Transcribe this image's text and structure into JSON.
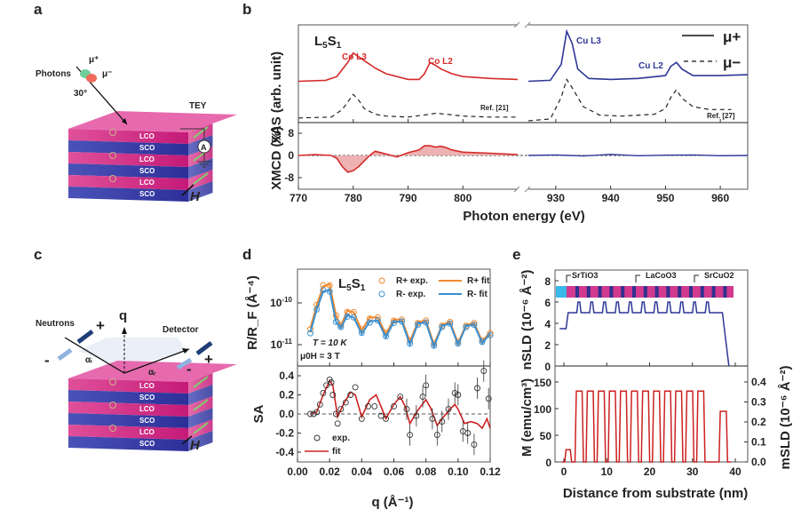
{
  "panels": {
    "a": {
      "letter": "a",
      "photons": "Photons",
      "mu_plus": "μ⁺",
      "mu_minus": "μ⁻",
      "angle": "30°",
      "tey": "TEY",
      "ammeter": "A",
      "field": "H",
      "layers": [
        "LCO",
        "SCO",
        "LCO",
        "SCO",
        "LCO",
        "SCO"
      ]
    },
    "b": {
      "letter": "b"
    },
    "c": {
      "letter": "c",
      "neutrons": "Neutrons",
      "detector": "Detector",
      "q": "q",
      "alpha_i": "αᵢ",
      "alpha_r": "αᵣ",
      "plus": "+",
      "minus": "-",
      "field": "H",
      "layers": [
        "LCO",
        "SCO",
        "LCO",
        "SCO",
        "LCO",
        "SCO"
      ]
    },
    "d": {
      "letter": "d"
    },
    "e": {
      "letter": "e"
    }
  },
  "chart_data": [
    {
      "id": "b-xas",
      "type": "line",
      "title": "",
      "sample": "L5S1",
      "xlabel": "Photon energy (eV)",
      "ylabel": "XAS (arb. unit)",
      "x_segments": [
        [
          770,
          810
        ],
        [
          925,
          965
        ]
      ],
      "xticks": [
        770,
        780,
        790,
        800,
        930,
        940,
        950,
        960
      ],
      "annotations": [
        "Co L3",
        "Co L2",
        "Cu L3",
        "Cu L2",
        "Ref. [21]",
        "Ref. [27]"
      ],
      "legend": [
        {
          "name": "μ+",
          "style": "solid"
        },
        {
          "name": "μ−",
          "style": "dashed"
        }
      ],
      "legend_position": "top-right",
      "series": [
        {
          "name": "Co μ+ (red)",
          "color": "#d42a2a",
          "x": [
            770,
            775,
            777,
            779,
            780,
            781,
            782,
            784,
            786,
            790,
            792,
            793,
            794,
            795,
            796,
            798,
            800,
            805,
            810
          ],
          "y": [
            0.42,
            0.43,
            0.47,
            0.62,
            0.72,
            0.68,
            0.64,
            0.56,
            0.5,
            0.44,
            0.44,
            0.5,
            0.62,
            0.59,
            0.55,
            0.5,
            0.47,
            0.45,
            0.44
          ]
        },
        {
          "name": "Co ref (dashed)",
          "color": "#222222",
          "x": [
            770,
            776,
            778,
            780,
            781,
            782,
            784,
            786,
            790,
            794,
            795,
            797,
            800,
            805,
            810
          ],
          "y": [
            0.03,
            0.04,
            0.12,
            0.28,
            0.22,
            0.13,
            0.07,
            0.05,
            0.04,
            0.07,
            0.08,
            0.07,
            0.05,
            0.04,
            0.04
          ]
        },
        {
          "name": "Cu μ+ (blue)",
          "color": "#2d3796",
          "x": [
            925,
            929,
            931,
            932,
            933,
            934,
            936,
            940,
            945,
            950,
            951,
            952,
            953,
            955,
            960,
            965
          ],
          "y": [
            0.42,
            0.43,
            0.6,
            0.95,
            0.82,
            0.55,
            0.45,
            0.44,
            0.45,
            0.48,
            0.58,
            0.62,
            0.55,
            0.48,
            0.48,
            0.49
          ]
        },
        {
          "name": "Cu ref (dashed)",
          "color": "#222222",
          "x": [
            925,
            929,
            931,
            932,
            933,
            935,
            938,
            942,
            948,
            950,
            951,
            952,
            953,
            955,
            958,
            962
          ],
          "y": [
            0.0,
            0.02,
            0.25,
            0.44,
            0.35,
            0.15,
            0.06,
            0.05,
            0.07,
            0.13,
            0.25,
            0.33,
            0.24,
            0.15,
            0.12,
            0.12
          ]
        }
      ]
    },
    {
      "id": "b-xmcd",
      "type": "area",
      "ylabel": "XMCD (%)",
      "ylim": [
        -12,
        12
      ],
      "yticks": [
        -8,
        0,
        8
      ],
      "series": [
        {
          "name": "Co XMCD",
          "color": "#d42a2a",
          "fill": "#ecaaaa",
          "x": [
            770,
            773,
            776,
            777,
            778,
            779,
            780,
            781,
            782,
            783,
            784,
            786,
            788,
            790,
            792,
            793,
            794,
            795,
            796,
            797,
            798,
            800,
            805,
            810
          ],
          "y": [
            0,
            0.3,
            0,
            -1,
            -4,
            -6,
            -5.5,
            -4,
            -2,
            0,
            1.5,
            0.5,
            -0.5,
            1,
            2,
            3.5,
            3.5,
            3,
            3.3,
            2.8,
            2,
            1.2,
            0.8,
            0.3
          ]
        },
        {
          "name": "Cu XMCD",
          "color": "#2d3796",
          "x": [
            925,
            930,
            935,
            940,
            945,
            950,
            955,
            960,
            965
          ],
          "y": [
            0,
            0.2,
            -0.2,
            0.4,
            -0.1,
            0.1,
            0.2,
            -0.1,
            0
          ]
        }
      ]
    },
    {
      "id": "d-rrf",
      "type": "scatter",
      "sample": "L5S1",
      "ylabel": "R/R_F (Å⁻⁴)",
      "yscale": "log",
      "ylim": [
        5e-12,
        5e-10
      ],
      "yticks": [
        "10^-10",
        "10^-11"
      ],
      "annotations": [
        "T = 10 K",
        "μ0H = 3 T"
      ],
      "legend": [
        "R+ exp.",
        "R- exp.",
        "R+ fit",
        "R- fit"
      ],
      "legend_position": "top-right",
      "series": [
        {
          "name": "R+ fit",
          "color": "#f08a30",
          "x": [
            0.008,
            0.012,
            0.016,
            0.02,
            0.024,
            0.027,
            0.031,
            0.035,
            0.04,
            0.045,
            0.05,
            0.055,
            0.06,
            0.065,
            0.07,
            0.075,
            0.08,
            0.085,
            0.09,
            0.095,
            0.1,
            0.105,
            0.11,
            0.115,
            0.12
          ],
          "y": [
            2.5e-11,
            9e-11,
            2.5e-10,
            2.8e-10,
            5e-11,
            2.8e-11,
            6.5e-11,
            6e-11,
            2.2e-11,
            4.5e-11,
            4.5e-11,
            1.8e-11,
            4e-11,
            4e-11,
            1.2e-11,
            3.5e-11,
            3.8e-11,
            1e-11,
            3e-11,
            3.5e-11,
            1.1e-11,
            3e-11,
            3.3e-11,
            1.2e-11,
            2e-11
          ]
        },
        {
          "name": "R- fit",
          "color": "#3a8fd0",
          "x": [
            0.008,
            0.012,
            0.016,
            0.02,
            0.024,
            0.027,
            0.031,
            0.035,
            0.04,
            0.045,
            0.05,
            0.055,
            0.06,
            0.065,
            0.07,
            0.075,
            0.08,
            0.085,
            0.09,
            0.095,
            0.1,
            0.105,
            0.11,
            0.115,
            0.12
          ],
          "y": [
            2e-11,
            7e-11,
            1.9e-10,
            2e-10,
            3.5e-11,
            2.5e-11,
            5e-11,
            4.5e-11,
            1.8e-11,
            3.6e-11,
            3.8e-11,
            1.5e-11,
            3.5e-11,
            3.6e-11,
            1e-11,
            3.2e-11,
            3.4e-11,
            9e-12,
            2.8e-11,
            3.2e-11,
            1e-11,
            2.8e-11,
            3e-11,
            1.1e-11,
            1.8e-11
          ]
        }
      ]
    },
    {
      "id": "d-sa",
      "type": "line",
      "xlabel": "q (Å⁻¹)",
      "ylabel": "SA",
      "xlim": [
        0,
        0.12
      ],
      "ylim": [
        -0.5,
        0.5
      ],
      "xticks": [
        "0.00",
        "0.02",
        "0.04",
        "0.06",
        "0.08",
        "0.10",
        "0.12"
      ],
      "yticks": [
        "0.4",
        "0.2",
        "0.0",
        "-0.2",
        "-0.4"
      ],
      "legend": [
        "exp.",
        "fit"
      ],
      "legend_position": "bottom-left",
      "series": [
        {
          "name": "fit",
          "color": "#cc2020",
          "x": [
            0.008,
            0.012,
            0.016,
            0.02,
            0.022,
            0.025,
            0.028,
            0.033,
            0.036,
            0.04,
            0.045,
            0.049,
            0.052,
            0.055,
            0.06,
            0.064,
            0.067,
            0.07,
            0.075,
            0.08,
            0.083,
            0.087,
            0.09,
            0.095,
            0.098,
            0.1,
            0.104,
            0.108,
            0.112,
            0.115,
            0.118,
            0.12
          ],
          "y": [
            0,
            0.02,
            0.2,
            0.35,
            0.3,
            -0.03,
            0.08,
            0.23,
            0.2,
            -0.03,
            0.15,
            0.2,
            0.08,
            -0.05,
            0.1,
            0.18,
            0.08,
            -0.1,
            0.04,
            0.15,
            0.06,
            -0.12,
            -0.05,
            0.05,
            0.1,
            0.05,
            -0.1,
            -0.08,
            -0.1,
            -0.15,
            -0.05,
            -0.15
          ]
        },
        {
          "name": "exp.",
          "color": "#333333",
          "x": [
            0.008,
            0.01,
            0.012,
            0.014,
            0.016,
            0.018,
            0.02,
            0.021,
            0.022,
            0.024,
            0.025,
            0.027,
            0.03,
            0.033,
            0.036,
            0.04,
            0.044,
            0.048,
            0.052,
            0.055,
            0.06,
            0.064,
            0.068,
            0.07,
            0.074,
            0.078,
            0.08,
            0.084,
            0.087,
            0.09,
            0.094,
            0.098,
            0.1,
            0.103,
            0.106,
            0.11,
            0.112,
            0.116,
            0.119
          ],
          "y": [
            0,
            0,
            0.02,
            0.1,
            0.22,
            0.3,
            0.36,
            0.33,
            0.2,
            0.0,
            -0.1,
            0.05,
            0.12,
            0.2,
            0.28,
            -0.05,
            0.08,
            0.08,
            -0.02,
            -0.05,
            0.08,
            0.18,
            0.05,
            -0.22,
            -0.02,
            0.18,
            0.3,
            -0.05,
            -0.22,
            -0.08,
            0.05,
            0.22,
            0.2,
            -0.18,
            -0.2,
            -0.32,
            0.27,
            0.45,
            0.16
          ]
        }
      ]
    },
    {
      "id": "e-nsld",
      "type": "line",
      "ylabel": "nSLD (10⁻⁶ Å⁻²)",
      "ylim": [
        0,
        9
      ],
      "yticks": [
        0,
        2,
        4,
        6,
        8
      ],
      "annotations": [
        "SrTiO3",
        "LaCoO3",
        "SrCuO2"
      ],
      "series": [
        {
          "name": "nSLD",
          "color": "#2d3796",
          "x": [
            -1,
            0.5,
            1,
            2.5,
            3,
            3.3,
            3.7,
            4,
            6,
            6.3,
            6.7,
            7,
            9,
            9.3,
            9.7,
            10,
            12,
            12.3,
            12.7,
            13,
            15,
            15.3,
            15.7,
            16,
            18,
            18.3,
            18.7,
            19,
            21,
            21.3,
            21.7,
            22,
            24,
            24.3,
            24.7,
            25,
            27,
            27.3,
            27.7,
            28,
            30,
            30.3,
            30.7,
            31,
            33,
            33.3,
            33.7,
            34,
            36,
            37,
            38.5
          ],
          "y": [
            3.5,
            3.5,
            5,
            5,
            5,
            6,
            6,
            5,
            5,
            6,
            6,
            5,
            5,
            6,
            6,
            5,
            5,
            6,
            6,
            5,
            5,
            6,
            6,
            5,
            5,
            6,
            6,
            5,
            5,
            6,
            6,
            5,
            5,
            6,
            6,
            5,
            5,
            6,
            6,
            5,
            5,
            6,
            6,
            5,
            5,
            6,
            6,
            5,
            5,
            5,
            0
          ]
        }
      ]
    },
    {
      "id": "e-m",
      "type": "line",
      "xlabel": "Distance from substrate (nm)",
      "ylabel": "M (emu/cm³)",
      "y2label": "mSLD (10⁻⁶ Å⁻²)",
      "xlim": [
        -2,
        43
      ],
      "ylim": [
        0,
        170
      ],
      "xticks": [
        0,
        10,
        20,
        30,
        40
      ],
      "yticks": [
        0,
        50,
        100,
        150
      ],
      "y2ticks": [
        "0.0",
        "0.1",
        "0.2",
        "0.3",
        "0.4"
      ],
      "series": [
        {
          "name": "M",
          "color": "#cc2020",
          "layer_values": [
            23,
            133,
            133,
            133,
            133,
            133,
            133,
            133,
            133,
            133,
            133,
            133,
            133,
            95
          ]
        }
      ]
    }
  ]
}
